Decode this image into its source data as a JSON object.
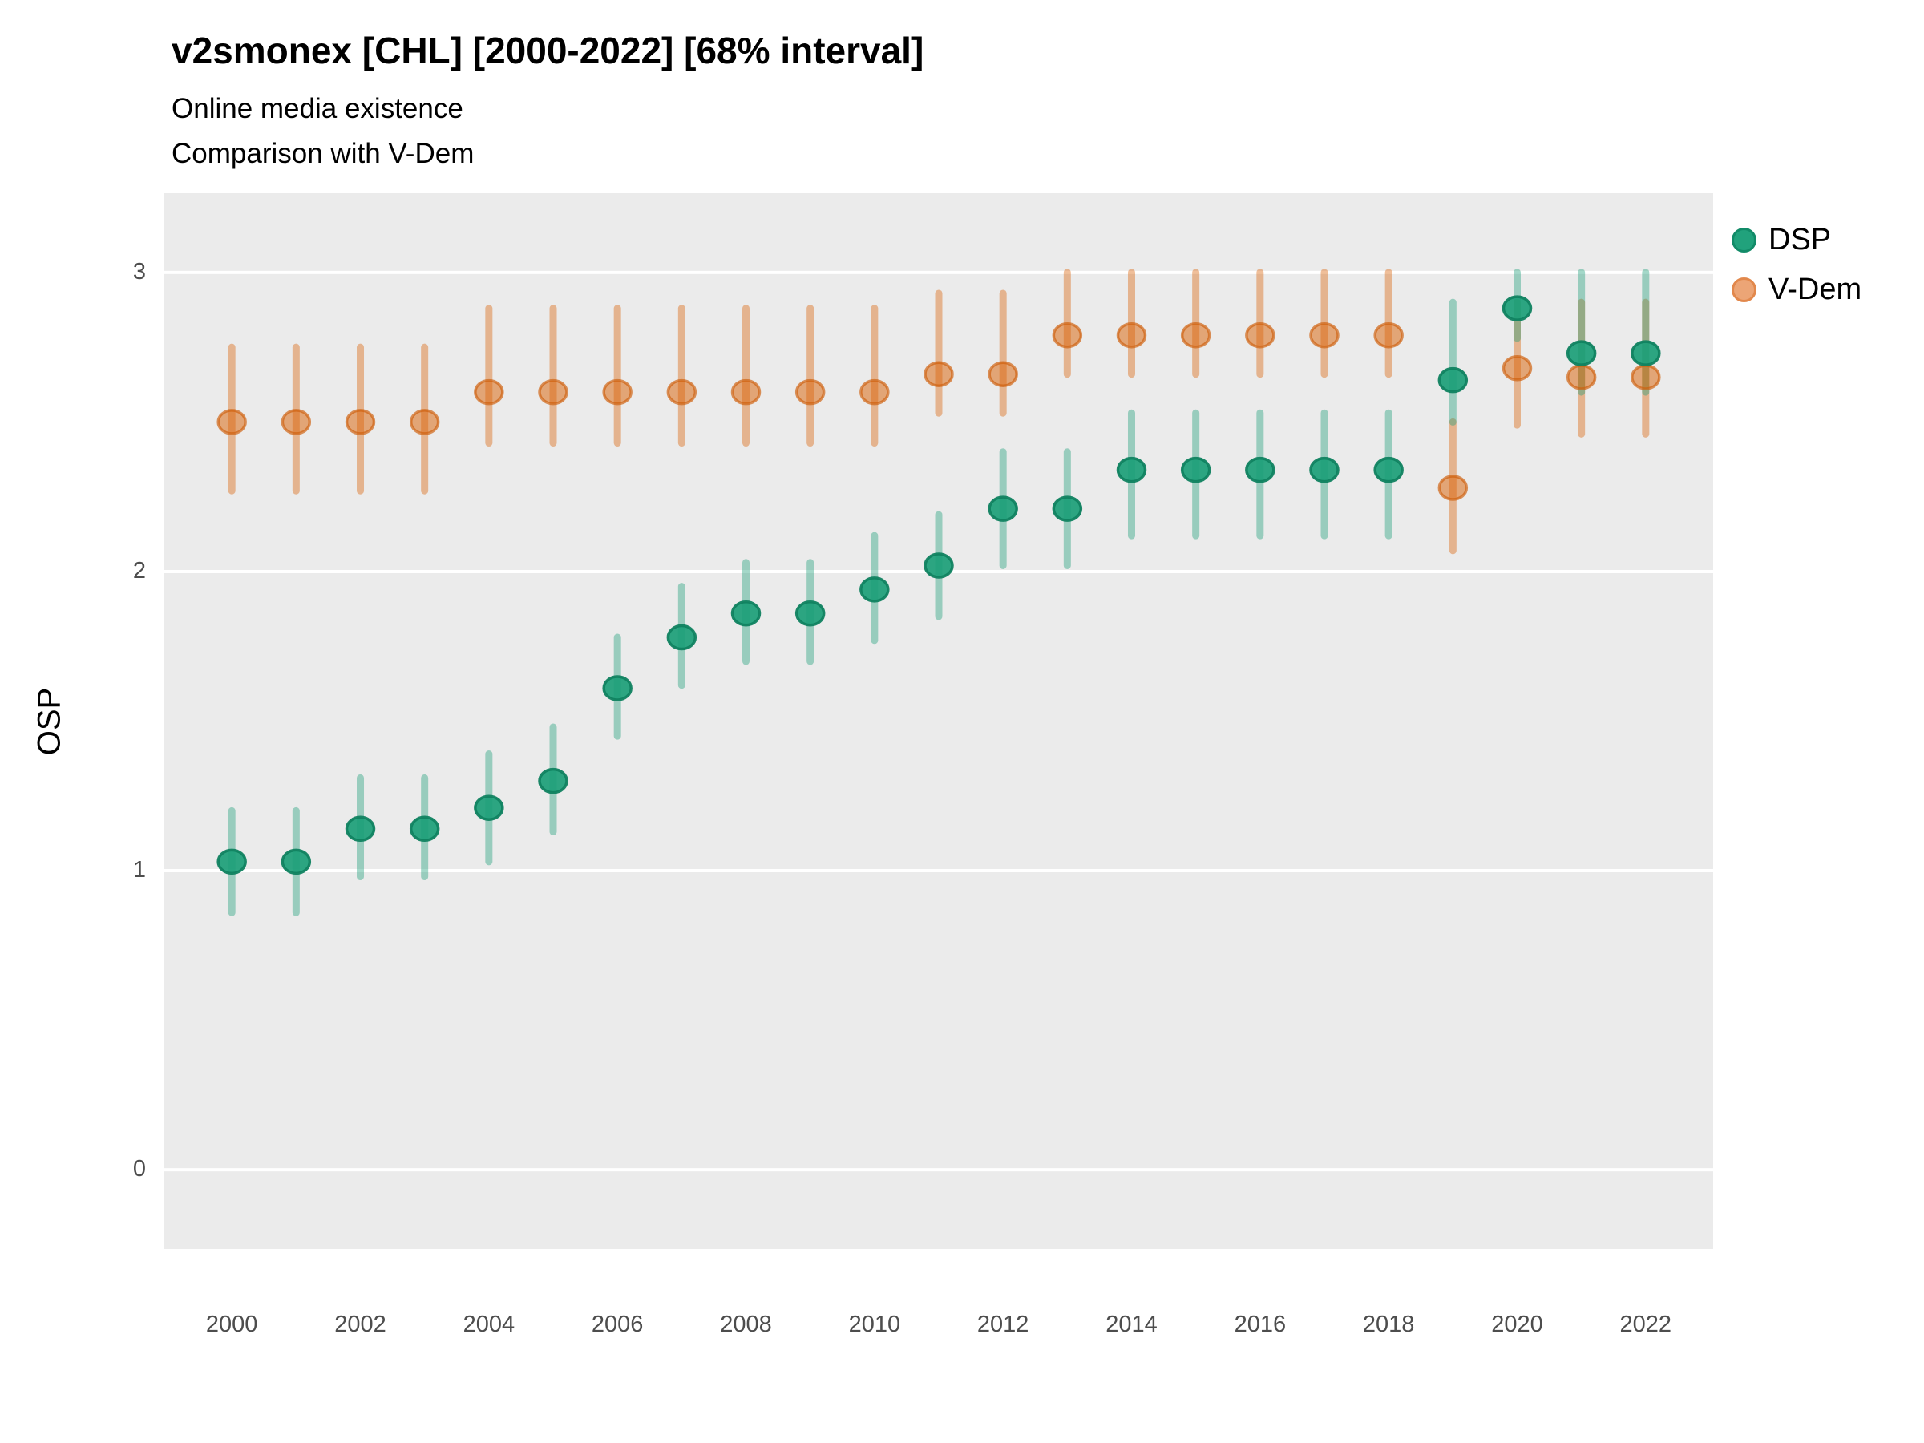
{
  "header": {
    "title": "v2smonex [CHL] [2000-2022] [68% interval]",
    "subtitle1": "Online media existence",
    "subtitle2": "Comparison with V-Dem"
  },
  "legend": [
    {
      "label": "DSP",
      "dot_fill": "#21a27c",
      "dot_ring": "#128b68"
    },
    {
      "label": "V-Dem",
      "dot_fill": "#eca576",
      "dot_ring": "#e2884c"
    }
  ],
  "style": {
    "panel_bg": "#ebebeb",
    "gridline": "#ffffff",
    "tick_text": "#4d4d4d",
    "dsp_point_fill": "rgba(27,158,119,0.92)",
    "dsp_point_stroke": "rgba(16,130,96,0.95)",
    "dsp_line": "rgba(27,158,119,0.40)",
    "vdem_point_fill": "rgba(217,95,2,0.50)",
    "vdem_point_stroke": "rgba(206,96,13,0.68)",
    "vdem_line": "rgba(217,95,2,0.40)"
  },
  "chart_data": {
    "type": "scatter",
    "title": "v2smonex [CHL] [2000-2022] [68% interval]",
    "subtitle": "Online media existence — Comparison with V-Dem",
    "xlabel": "",
    "ylabel": "OSP",
    "interval": "68%",
    "grid": "horizontal-major-only",
    "legend_position": "right-top",
    "xlim": [
      1998.95,
      2023.05
    ],
    "ylim": [
      -0.265,
      3.265
    ],
    "yticks": [
      0,
      1,
      2,
      3
    ],
    "xticks": [
      2000,
      2002,
      2004,
      2006,
      2008,
      2010,
      2012,
      2014,
      2016,
      2018,
      2020,
      2022
    ],
    "x": [
      2000,
      2001,
      2002,
      2003,
      2004,
      2005,
      2006,
      2007,
      2008,
      2009,
      2010,
      2011,
      2012,
      2013,
      2014,
      2015,
      2016,
      2017,
      2018,
      2019,
      2020,
      2021,
      2022
    ],
    "series": [
      {
        "name": "V-Dem",
        "color": "#D95F02",
        "values": [
          2.5,
          2.5,
          2.5,
          2.5,
          2.6,
          2.6,
          2.6,
          2.6,
          2.6,
          2.6,
          2.6,
          2.66,
          2.66,
          2.79,
          2.79,
          2.79,
          2.79,
          2.79,
          2.79,
          2.28,
          2.68,
          2.65,
          2.65
        ],
        "lo": [
          2.27,
          2.27,
          2.27,
          2.27,
          2.43,
          2.43,
          2.43,
          2.43,
          2.43,
          2.43,
          2.43,
          2.53,
          2.53,
          2.66,
          2.66,
          2.66,
          2.66,
          2.66,
          2.66,
          2.07,
          2.49,
          2.46,
          2.46
        ],
        "hi": [
          2.75,
          2.75,
          2.75,
          2.75,
          2.88,
          2.88,
          2.88,
          2.88,
          2.88,
          2.88,
          2.88,
          2.93,
          2.93,
          3.0,
          3.0,
          3.0,
          3.0,
          3.0,
          3.0,
          2.5,
          2.9,
          2.9,
          2.9
        ]
      },
      {
        "name": "DSP",
        "color": "#1B9E77",
        "values": [
          1.03,
          1.03,
          1.14,
          1.14,
          1.21,
          1.3,
          1.61,
          1.78,
          1.86,
          1.86,
          1.94,
          2.02,
          2.21,
          2.21,
          2.34,
          2.34,
          2.34,
          2.34,
          2.34,
          2.64,
          2.88,
          2.73,
          2.73
        ],
        "lo": [
          0.86,
          0.86,
          0.98,
          0.98,
          1.03,
          1.13,
          1.45,
          1.62,
          1.7,
          1.7,
          1.77,
          1.85,
          2.02,
          2.02,
          2.12,
          2.12,
          2.12,
          2.12,
          2.12,
          2.5,
          2.78,
          2.6,
          2.6
        ],
        "hi": [
          1.2,
          1.2,
          1.31,
          1.31,
          1.39,
          1.48,
          1.78,
          1.95,
          2.03,
          2.03,
          2.12,
          2.19,
          2.4,
          2.4,
          2.53,
          2.53,
          2.53,
          2.53,
          2.53,
          2.9,
          3.0,
          3.0,
          3.0
        ]
      }
    ]
  }
}
